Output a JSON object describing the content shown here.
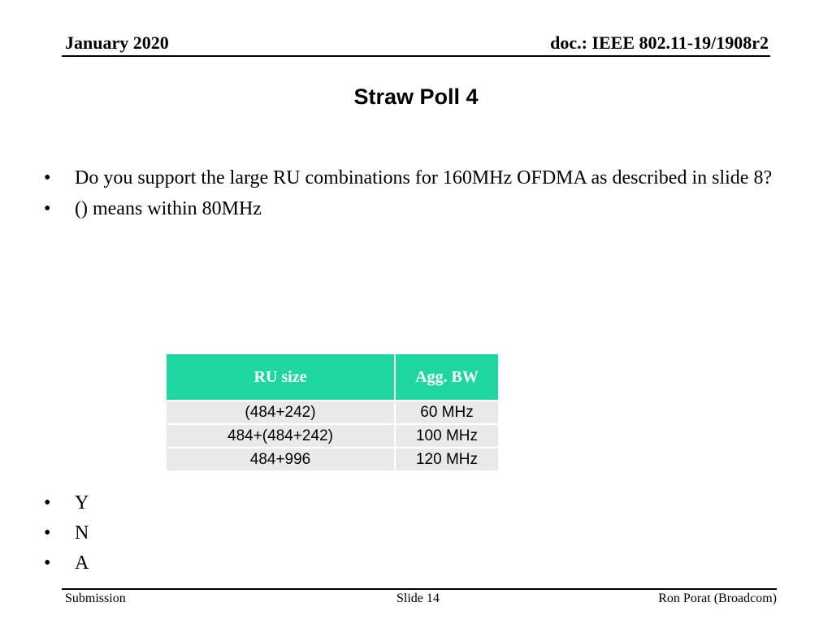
{
  "header": {
    "date": "January 2020",
    "doc_id": "doc.: IEEE 802.11-19/1908r2"
  },
  "slide": {
    "title": "Straw Poll 4",
    "bullet_char": "•",
    "question_bullets": [
      "Do you support the large RU combinations for 160MHz OFDMA as described in slide 8?",
      "() means within 80MHz"
    ],
    "table": {
      "headers": [
        "RU size",
        "Agg. BW"
      ],
      "rows": [
        [
          "(484+242)",
          "60 MHz"
        ],
        [
          "484+(484+242)",
          "100 MHz"
        ],
        [
          "484+996",
          "120 MHz"
        ]
      ]
    },
    "vote_options": [
      "Y",
      "N",
      "A"
    ]
  },
  "footer": {
    "left": "Submission",
    "center": "Slide 14",
    "right": "Ron Porat (Broadcom)"
  }
}
